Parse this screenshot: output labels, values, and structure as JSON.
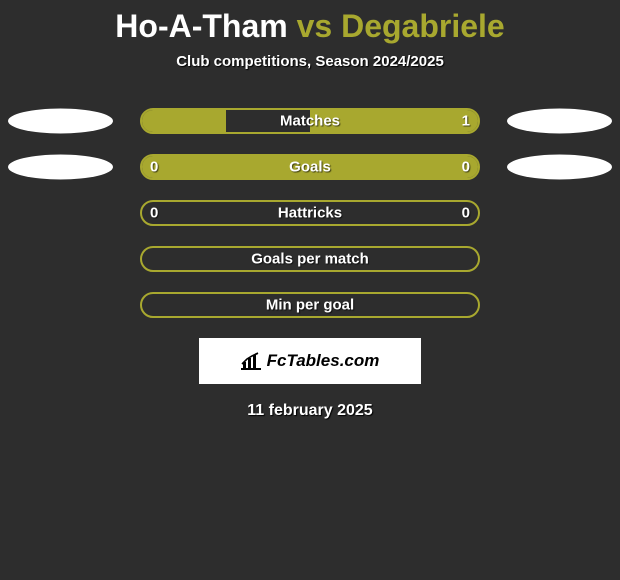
{
  "title": {
    "player1": "Ho-A-Tham",
    "vs": "vs",
    "player2": "Degabriele"
  },
  "subtitle": "Club competitions, Season 2024/2025",
  "colors": {
    "accent": "#a8a82f",
    "background": "#2d2d2d",
    "text": "#ffffff",
    "ellipse": "#ffffff"
  },
  "rows": [
    {
      "label": "Matches",
      "left_val": "",
      "right_val": "1",
      "left_fill_pct": 50,
      "right_fill_pct": 100,
      "show_left_ellipse": true,
      "show_right_ellipse": true,
      "show_left_val": false,
      "show_right_val": true
    },
    {
      "label": "Goals",
      "left_val": "0",
      "right_val": "0",
      "left_fill_pct": 100,
      "right_fill_pct": 100,
      "show_left_ellipse": true,
      "show_right_ellipse": true,
      "show_left_val": true,
      "show_right_val": true
    },
    {
      "label": "Hattricks",
      "left_val": "0",
      "right_val": "0",
      "left_fill_pct": 0,
      "right_fill_pct": 0,
      "show_left_ellipse": false,
      "show_right_ellipse": false,
      "show_left_val": true,
      "show_right_val": true
    },
    {
      "label": "Goals per match",
      "left_val": "",
      "right_val": "",
      "left_fill_pct": 0,
      "right_fill_pct": 0,
      "show_left_ellipse": false,
      "show_right_ellipse": false,
      "show_left_val": false,
      "show_right_val": false
    },
    {
      "label": "Min per goal",
      "left_val": "",
      "right_val": "",
      "left_fill_pct": 0,
      "right_fill_pct": 0,
      "show_left_ellipse": false,
      "show_right_ellipse": false,
      "show_left_val": false,
      "show_right_val": false
    }
  ],
  "logo_text": "FcTables.com",
  "date": "11 february 2025"
}
